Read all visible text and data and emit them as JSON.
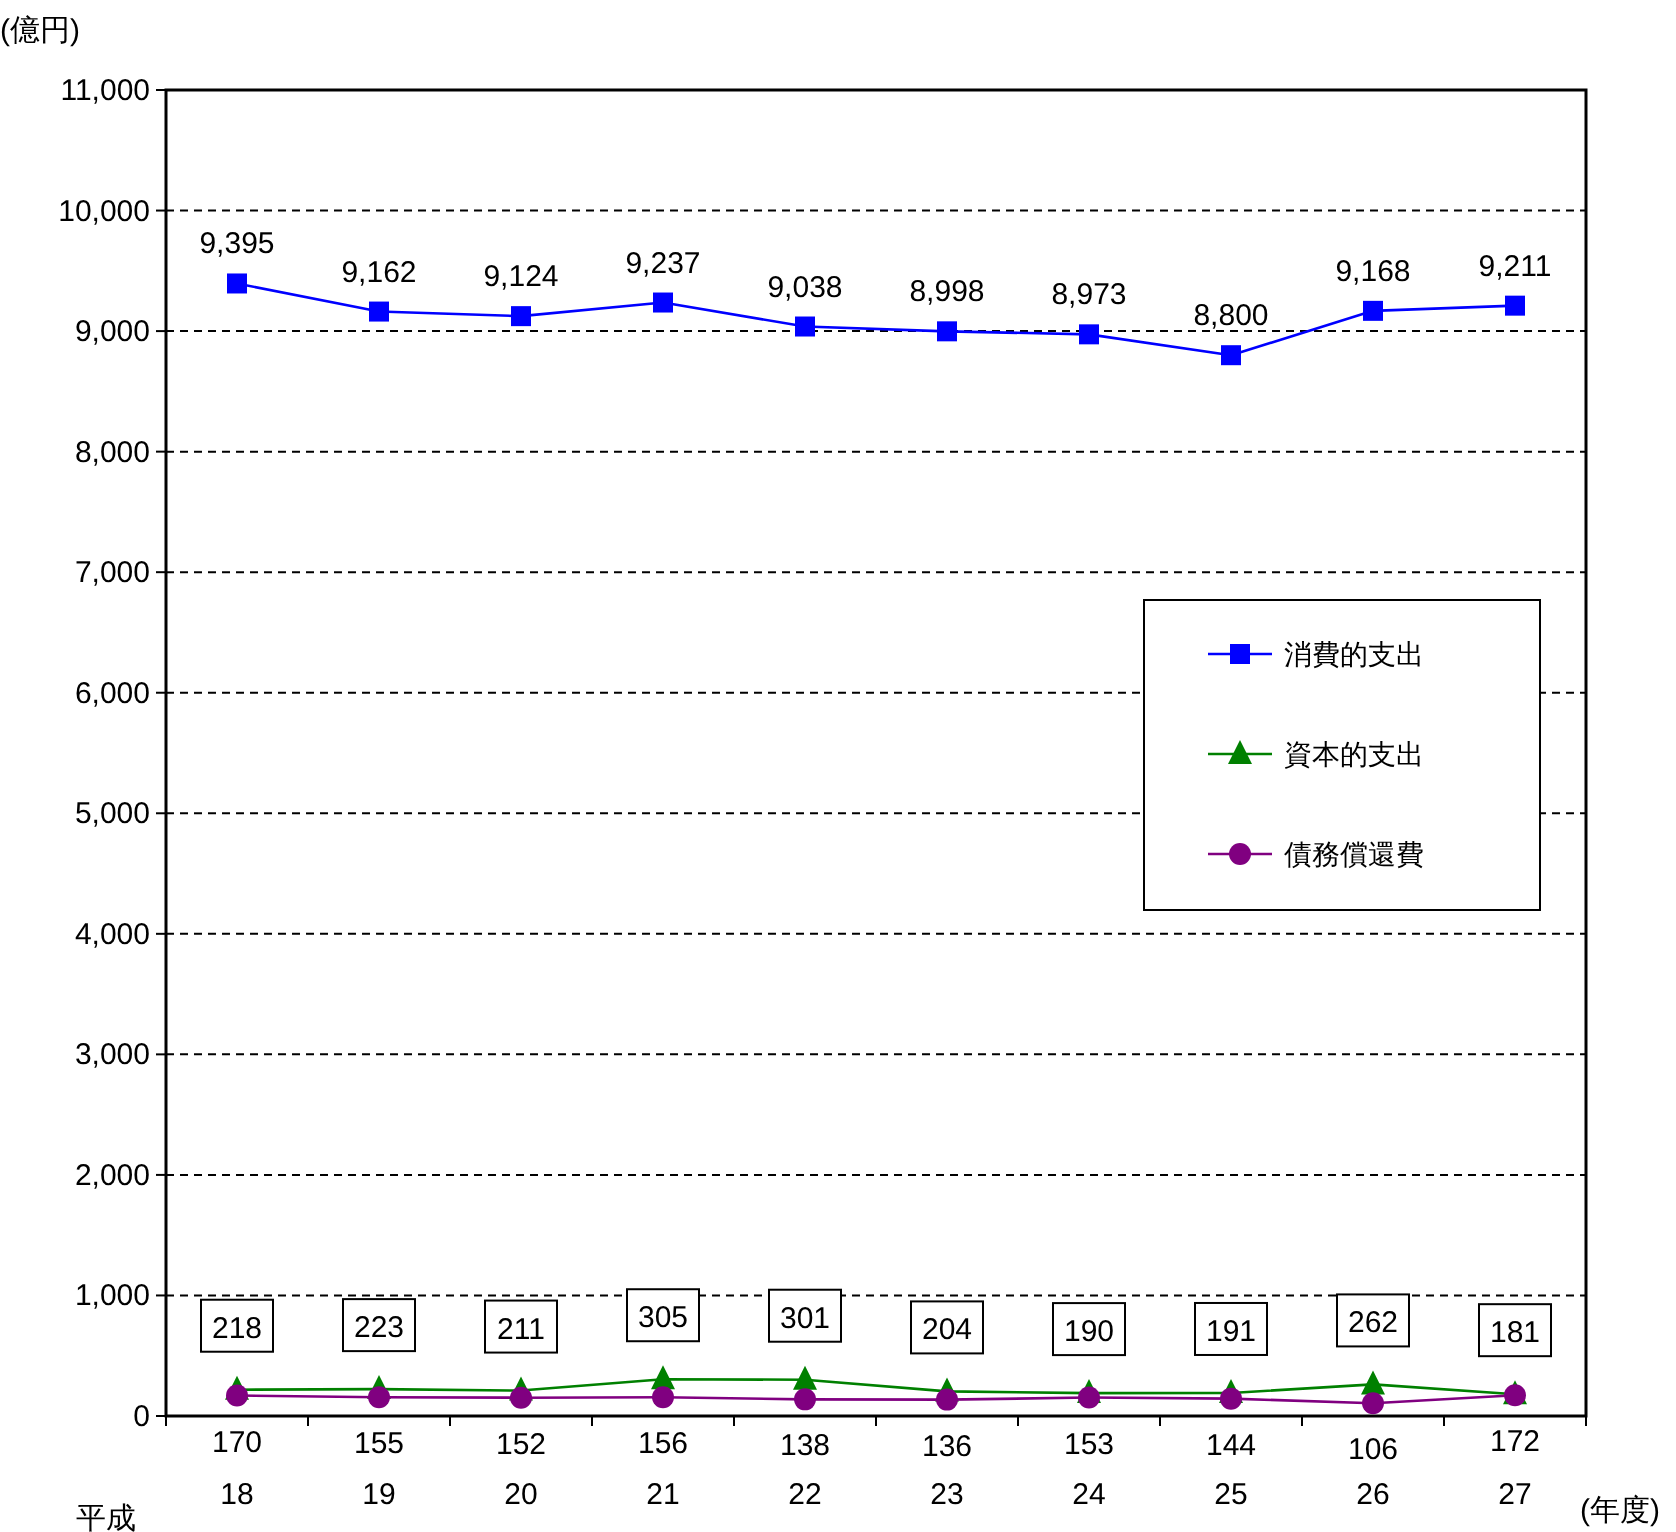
{
  "chart_data": {
    "type": "line",
    "ylabel": "(億円)",
    "xlabel": "(年度)",
    "annotations": [
      "平成"
    ],
    "categories": [
      "18",
      "19",
      "20",
      "21",
      "22",
      "23",
      "24",
      "25",
      "26",
      "27"
    ],
    "ylim": [
      0,
      11000
    ],
    "yticks": [
      0,
      {
        "value": 1000,
        "label": "1,000"
      },
      {
        "value": 2000,
        "label": "2,000"
      },
      {
        "value": 3000,
        "label": "3,000"
      },
      {
        "value": 4000,
        "label": "4,000"
      },
      {
        "value": 5000,
        "label": "5,000"
      },
      {
        "value": 6000,
        "label": "6,000"
      },
      {
        "value": 7000,
        "label": "7,000"
      },
      {
        "value": 8000,
        "label": "8,000"
      },
      {
        "value": 9000,
        "label": "9,000"
      },
      {
        "value": 10000,
        "label": "10,000"
      },
      {
        "value": 11000,
        "label": "11,000"
      }
    ],
    "grid": "y",
    "legend": "right",
    "series": [
      {
        "name": "消費的支出",
        "color": "#0000ff",
        "marker": "square",
        "values": [
          9395,
          9162,
          9124,
          9237,
          9038,
          8998,
          8973,
          8800,
          9168,
          9211
        ],
        "value_labels": [
          "9,395",
          "9,162",
          "9,124",
          "9,237",
          "9,038",
          "8,998",
          "8,973",
          "8,800",
          "9,168",
          "9,211"
        ]
      },
      {
        "name": "資本的支出",
        "color": "#008000",
        "marker": "triangle",
        "values": [
          218,
          223,
          211,
          305,
          301,
          204,
          190,
          191,
          262,
          181
        ],
        "value_labels": [
          "218",
          "223",
          "211",
          "305",
          "301",
          "204",
          "190",
          "191",
          "262",
          "181"
        ]
      },
      {
        "name": "債務償還費",
        "color": "#800080",
        "marker": "circle",
        "values": [
          170,
          155,
          152,
          156,
          138,
          136,
          153,
          144,
          106,
          172
        ],
        "value_labels": [
          "170",
          "155",
          "152",
          "156",
          "138",
          "136",
          "153",
          "144",
          "106",
          "172"
        ]
      }
    ]
  }
}
